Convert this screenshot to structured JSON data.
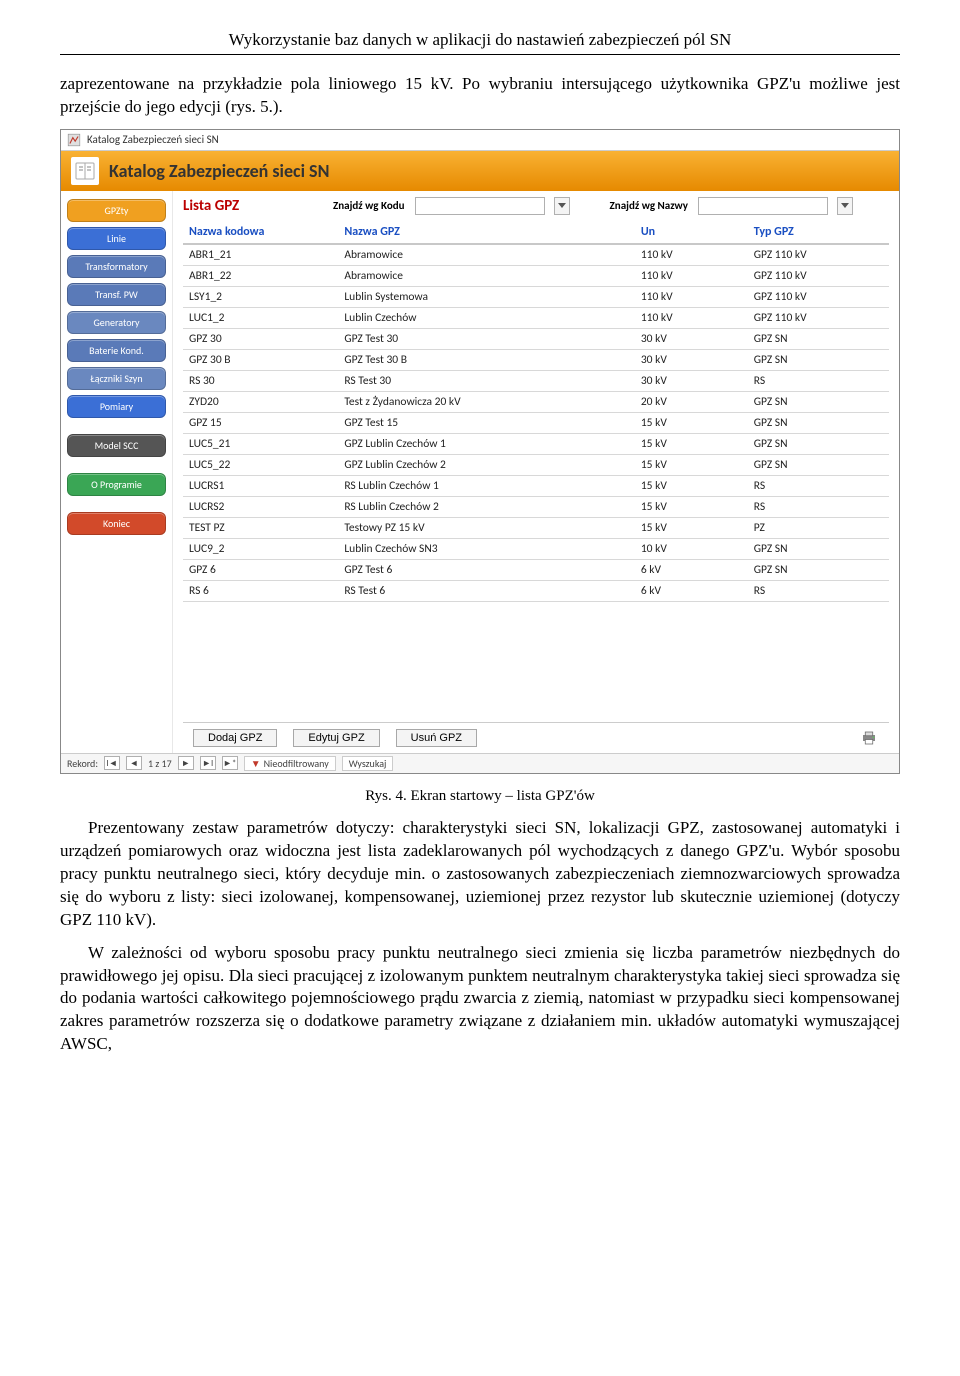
{
  "doc": {
    "header": "Wykorzystanie baz danych w aplikacji do nastawień zabezpieczeń pól SN",
    "para1": "zaprezentowane na przykładzie pola liniowego 15 kV. Po wybraniu intersującego użytkownika GPZ'u możliwe jest przejście do jego edycji (rys. 5.).",
    "caption": "Rys. 4. Ekran startowy – lista GPZ'ów",
    "para2": "Prezentowany zestaw parametrów dotyczy: charakterystyki sieci SN, lokalizacji GPZ, zastosowanej automatyki i urządzeń pomiarowych oraz widoczna jest lista zadeklarowanych pól wychodzących z danego GPZ'u. Wybór sposobu pracy punktu neutralnego sieci, który decyduje min. o zastosowanych zabezpieczeniach ziemnozwarciowych sprowadza się do wyboru z listy: sieci izolowanej, kompensowanej, uziemionej przez rezystor lub skutecznie uziemionej (dotyczy GPZ 110 kV).",
    "para3": "W zależności od wyboru sposobu pracy punktu neutralnego sieci zmienia się liczba parametrów niezbędnych do prawidłowego jej opisu. Dla sieci pracującej z izolowanym punktem neutralnym charakterystyka takiej sieci sprowadza się do podania wartości całkowitego pojemnościowego prądu zwarcia z ziemią, natomiast w przypadku sieci kompensowanej zakres parametrów rozszerza się o dodatkowe parametry związane z działaniem min. układów automatyki wymuszającej AWSC,"
  },
  "app": {
    "window_title": "Katalog Zabezpieczeń sieci SN",
    "page_title": "Katalog Zabezpieczeń sieci SN",
    "sidebar": [
      {
        "label": "GPZty",
        "bg": "#f0a020"
      },
      {
        "label": "Linie",
        "bg": "#3b6fd6"
      },
      {
        "label": "Transformatory",
        "bg": "#5a7ab8"
      },
      {
        "label": "Transf. PW",
        "bg": "#5a7ab8"
      },
      {
        "label": "Generatory",
        "bg": "#6a88bf"
      },
      {
        "label": "Baterie Kond.",
        "bg": "#5a7ab8"
      },
      {
        "label": "Łączniki Szyn",
        "bg": "#6a88bf"
      },
      {
        "label": "Pomiary",
        "bg": "#3b6fd6"
      },
      {
        "label": "Model SCC",
        "bg": "#555555"
      },
      {
        "label": "O Programie",
        "bg": "#3aa655"
      },
      {
        "label": "Koniec",
        "bg": "#d24a2a"
      }
    ],
    "list_title": "Lista GPZ",
    "search": {
      "by_code_label": "Znajdź wg Kodu",
      "by_name_label": "Znajdź wg Nazwy"
    },
    "columns": {
      "code": "Nazwa kodowa",
      "name": "Nazwa GPZ",
      "un": "Un",
      "typ": "Typ GPZ"
    },
    "rows": [
      {
        "code": "ABR1_21",
        "name": "Abramowice",
        "un": "110 kV",
        "typ": "GPZ 110 kV"
      },
      {
        "code": "ABR1_22",
        "name": "Abramowice",
        "un": "110 kV",
        "typ": "GPZ 110 kV"
      },
      {
        "code": "LSY1_2",
        "name": "Lublin Systemowa",
        "un": "110 kV",
        "typ": "GPZ 110 kV"
      },
      {
        "code": "LUC1_2",
        "name": "Lublin Czechów",
        "un": "110 kV",
        "typ": "GPZ 110 kV"
      },
      {
        "code": "GPZ 30",
        "name": "GPZ Test 30",
        "un": "30 kV",
        "typ": "GPZ SN"
      },
      {
        "code": "GPZ 30 B",
        "name": "GPZ Test 30 B",
        "un": "30 kV",
        "typ": "GPZ SN"
      },
      {
        "code": "RS 30",
        "name": "RS Test 30",
        "un": "30 kV",
        "typ": "RS"
      },
      {
        "code": "ZYD20",
        "name": "Test z Żydanowicza 20 kV",
        "un": "20 kV",
        "typ": "GPZ SN"
      },
      {
        "code": "GPZ 15",
        "name": "GPZ Test 15",
        "un": "15 kV",
        "typ": "GPZ SN"
      },
      {
        "code": "LUC5_21",
        "name": "GPZ Lublin Czechów 1",
        "un": "15 kV",
        "typ": "GPZ SN"
      },
      {
        "code": "LUC5_22",
        "name": "GPZ Lublin Czechów 2",
        "un": "15 kV",
        "typ": "GPZ SN"
      },
      {
        "code": "LUCRS1",
        "name": "RS Lublin Czechów 1",
        "un": "15 kV",
        "typ": "RS"
      },
      {
        "code": "LUCRS2",
        "name": "RS Lublin Czechów 2",
        "un": "15 kV",
        "typ": "RS"
      },
      {
        "code": "TEST PZ",
        "name": "Testowy PZ 15 kV",
        "un": "15 kV",
        "typ": "PZ"
      },
      {
        "code": "LUC9_2",
        "name": "Lublin Czechów SN3",
        "un": "10 kV",
        "typ": "GPZ SN"
      },
      {
        "code": "GPZ 6",
        "name": "GPZ Test 6",
        "un": "6 kV",
        "typ": "GPZ SN"
      },
      {
        "code": "RS 6",
        "name": "RS Test 6",
        "un": "6 kV",
        "typ": "RS"
      }
    ],
    "actions": {
      "add": "Dodaj GPZ",
      "edit": "Edytuj GPZ",
      "delete": "Usuń GPZ"
    },
    "status": {
      "record_label": "Rekord:",
      "position": "1 z 17",
      "filter": "Nieodfiltrowany",
      "search": "Wyszukaj"
    }
  }
}
